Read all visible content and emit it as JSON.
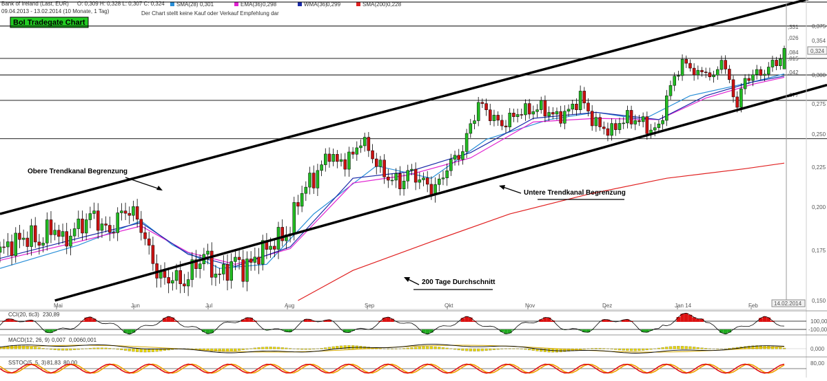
{
  "header": {
    "instrument": "Bank of Ireland (Last, EUR)",
    "ohlc": "O: 0,309 H: 0,328 L: 0,307 C: 0,324",
    "period": "09.04.2013 - 13.02.2014 (10 Monate, 1 Tag)",
    "disclaimer": "Der Chart stellt keine Kauf oder Verkauf Empfehlung dar",
    "indicators": [
      {
        "label": "SMA(28)",
        "value": "0,301",
        "color": "#2a8fd8"
      },
      {
        "label": "EMA(36)",
        "value": "0,298",
        "color": "#e020d0"
      },
      {
        "label": "WMA(36)",
        "value": "0,299",
        "color": "#1a2aa8"
      },
      {
        "label": "SMA(200)",
        "value": "0,228",
        "color": "#e02020"
      }
    ]
  },
  "title_badge": "BoI Tradegate Chart",
  "annotations": {
    "upper": "Obere Trendkanal Begrenzung",
    "lower": "Untere Trendkanal Begrenzung",
    "ma200": "200 Tage Durchschnitt"
  },
  "price_axis": {
    "ticks": [
      "0,150",
      "0,175",
      "0,200",
      "0,225",
      "0,250",
      "0,275",
      "0,300",
      "0,324",
      "0,354",
      "0,375"
    ],
    "last_price": "0,324",
    "last_date": "14.02.2014"
  },
  "small_levels": [
    ",026",
    ",084",
    ",015",
    ",042",
    ",077",
    ",331"
  ],
  "cci": {
    "label": "CCI(20, tlc3)",
    "value": "230,89",
    "ticks": [
      "100,00",
      "-100,00"
    ]
  },
  "macd": {
    "label": "MACD(12, 26, 9)",
    "value": "0,007",
    "value2": "0,001",
    "ticks": [
      "0,000"
    ]
  },
  "sstoc": {
    "label": "SSTOC(5, 5, 3)",
    "value": "81,83",
    "value2": "80,00",
    "ticks": [
      "80,00"
    ]
  },
  "chart_data": {
    "type": "candlestick",
    "title": "BoI Tradegate Chart",
    "ylim": [
      0.15,
      0.375
    ],
    "x_categories": [
      "Mai",
      "Jun",
      "Jul",
      "Aug",
      "Sep",
      "Okt",
      "Nov",
      "Dez",
      "Jan 14",
      "Feb"
    ],
    "close_path": [
      [
        0,
        0.174
      ],
      [
        2,
        0.178
      ],
      [
        4,
        0.18
      ],
      [
        6,
        0.182
      ],
      [
        8,
        0.183
      ],
      [
        10,
        0.179
      ],
      [
        12,
        0.186
      ],
      [
        14,
        0.188
      ],
      [
        16,
        0.18
      ],
      [
        18,
        0.184
      ],
      [
        20,
        0.189
      ],
      [
        22,
        0.192
      ],
      [
        24,
        0.196
      ],
      [
        26,
        0.188
      ],
      [
        28,
        0.186
      ],
      [
        30,
        0.193
      ],
      [
        32,
        0.199
      ],
      [
        34,
        0.196
      ],
      [
        36,
        0.189
      ],
      [
        38,
        0.174
      ],
      [
        40,
        0.165
      ],
      [
        42,
        0.159
      ],
      [
        44,
        0.163
      ],
      [
        46,
        0.158
      ],
      [
        48,
        0.162
      ],
      [
        50,
        0.168
      ],
      [
        52,
        0.173
      ],
      [
        54,
        0.166
      ],
      [
        56,
        0.162
      ],
      [
        58,
        0.166
      ],
      [
        60,
        0.17
      ],
      [
        62,
        0.166
      ],
      [
        64,
        0.168
      ],
      [
        66,
        0.174
      ],
      [
        68,
        0.176
      ],
      [
        70,
        0.18
      ],
      [
        72,
        0.183
      ],
      [
        74,
        0.187
      ],
      [
        76,
        0.205
      ],
      [
        78,
        0.213
      ],
      [
        80,
        0.218
      ],
      [
        82,
        0.226
      ],
      [
        84,
        0.236
      ],
      [
        86,
        0.228
      ],
      [
        88,
        0.23
      ],
      [
        90,
        0.234
      ],
      [
        92,
        0.246
      ],
      [
        94,
        0.238
      ],
      [
        96,
        0.228
      ],
      [
        98,
        0.221
      ],
      [
        100,
        0.217
      ],
      [
        102,
        0.215
      ],
      [
        104,
        0.221
      ],
      [
        106,
        0.22
      ],
      [
        108,
        0.215
      ],
      [
        110,
        0.212
      ],
      [
        112,
        0.214
      ],
      [
        114,
        0.226
      ],
      [
        116,
        0.231
      ],
      [
        118,
        0.238
      ],
      [
        120,
        0.257
      ],
      [
        122,
        0.275
      ],
      [
        124,
        0.27
      ],
      [
        126,
        0.262
      ],
      [
        128,
        0.258
      ],
      [
        130,
        0.262
      ],
      [
        132,
        0.268
      ],
      [
        134,
        0.269
      ],
      [
        136,
        0.27
      ],
      [
        138,
        0.272
      ],
      [
        140,
        0.268
      ],
      [
        142,
        0.264
      ],
      [
        144,
        0.267
      ],
      [
        146,
        0.272
      ],
      [
        148,
        0.282
      ],
      [
        150,
        0.268
      ],
      [
        152,
        0.258
      ],
      [
        154,
        0.255
      ],
      [
        156,
        0.252
      ],
      [
        158,
        0.26
      ],
      [
        160,
        0.263
      ],
      [
        162,
        0.262
      ],
      [
        164,
        0.259
      ],
      [
        166,
        0.253
      ],
      [
        168,
        0.255
      ],
      [
        170,
        0.28
      ],
      [
        172,
        0.298
      ],
      [
        174,
        0.312
      ],
      [
        176,
        0.308
      ],
      [
        178,
        0.3
      ],
      [
        180,
        0.305
      ],
      [
        182,
        0.295
      ],
      [
        184,
        0.318
      ],
      [
        186,
        0.292
      ],
      [
        188,
        0.275
      ],
      [
        190,
        0.295
      ],
      [
        192,
        0.302
      ],
      [
        194,
        0.3
      ],
      [
        196,
        0.308
      ],
      [
        198,
        0.312
      ],
      [
        200,
        0.324
      ]
    ],
    "series": [
      {
        "name": "SMA(28)",
        "color": "#2a8fd8",
        "values": [
          [
            0,
            0.166
          ],
          [
            20,
            0.178
          ],
          [
            36,
            0.192
          ],
          [
            44,
            0.178
          ],
          [
            56,
            0.166
          ],
          [
            68,
            0.168
          ],
          [
            80,
            0.196
          ],
          [
            96,
            0.226
          ],
          [
            110,
            0.218
          ],
          [
            124,
            0.246
          ],
          [
            140,
            0.262
          ],
          [
            152,
            0.268
          ],
          [
            164,
            0.262
          ],
          [
            176,
            0.282
          ],
          [
            192,
            0.294
          ],
          [
            200,
            0.301
          ]
        ]
      },
      {
        "name": "EMA(36)",
        "color": "#e020d0",
        "values": [
          [
            0,
            0.17
          ],
          [
            20,
            0.18
          ],
          [
            36,
            0.189
          ],
          [
            48,
            0.174
          ],
          [
            60,
            0.168
          ],
          [
            74,
            0.176
          ],
          [
            90,
            0.215
          ],
          [
            104,
            0.22
          ],
          [
            120,
            0.232
          ],
          [
            136,
            0.26
          ],
          [
            152,
            0.263
          ],
          [
            168,
            0.262
          ],
          [
            180,
            0.28
          ],
          [
            192,
            0.292
          ],
          [
            200,
            0.298
          ]
        ]
      },
      {
        "name": "WMA(36)",
        "color": "#1a2aa8",
        "values": [
          [
            0,
            0.171
          ],
          [
            20,
            0.182
          ],
          [
            36,
            0.191
          ],
          [
            48,
            0.173
          ],
          [
            60,
            0.167
          ],
          [
            74,
            0.177
          ],
          [
            90,
            0.218
          ],
          [
            104,
            0.222
          ],
          [
            120,
            0.236
          ],
          [
            136,
            0.263
          ],
          [
            152,
            0.268
          ],
          [
            168,
            0.262
          ],
          [
            180,
            0.282
          ],
          [
            192,
            0.294
          ],
          [
            200,
            0.299
          ]
        ]
      },
      {
        "name": "SMA(200)",
        "color": "#e02020",
        "values": [
          [
            76,
            0.15
          ],
          [
            90,
            0.165
          ],
          [
            110,
            0.18
          ],
          [
            130,
            0.196
          ],
          [
            150,
            0.208
          ],
          [
            170,
            0.218
          ],
          [
            190,
            0.224
          ],
          [
            200,
            0.228
          ]
        ]
      }
    ],
    "horizontal_levels": [
      0.2465,
      0.278,
      0.3,
      0.3165,
      0.3533,
      0.375
    ],
    "trend_lines": [
      {
        "name": "Obere Trendkanal Begrenzung",
        "from": [
          0,
          0.196
        ],
        "to": [
          200,
          0.372
        ]
      },
      {
        "name": "Untere Trendkanal Begrenzung",
        "from": [
          14,
          0.15
        ],
        "to": [
          200,
          0.281
        ]
      }
    ]
  }
}
